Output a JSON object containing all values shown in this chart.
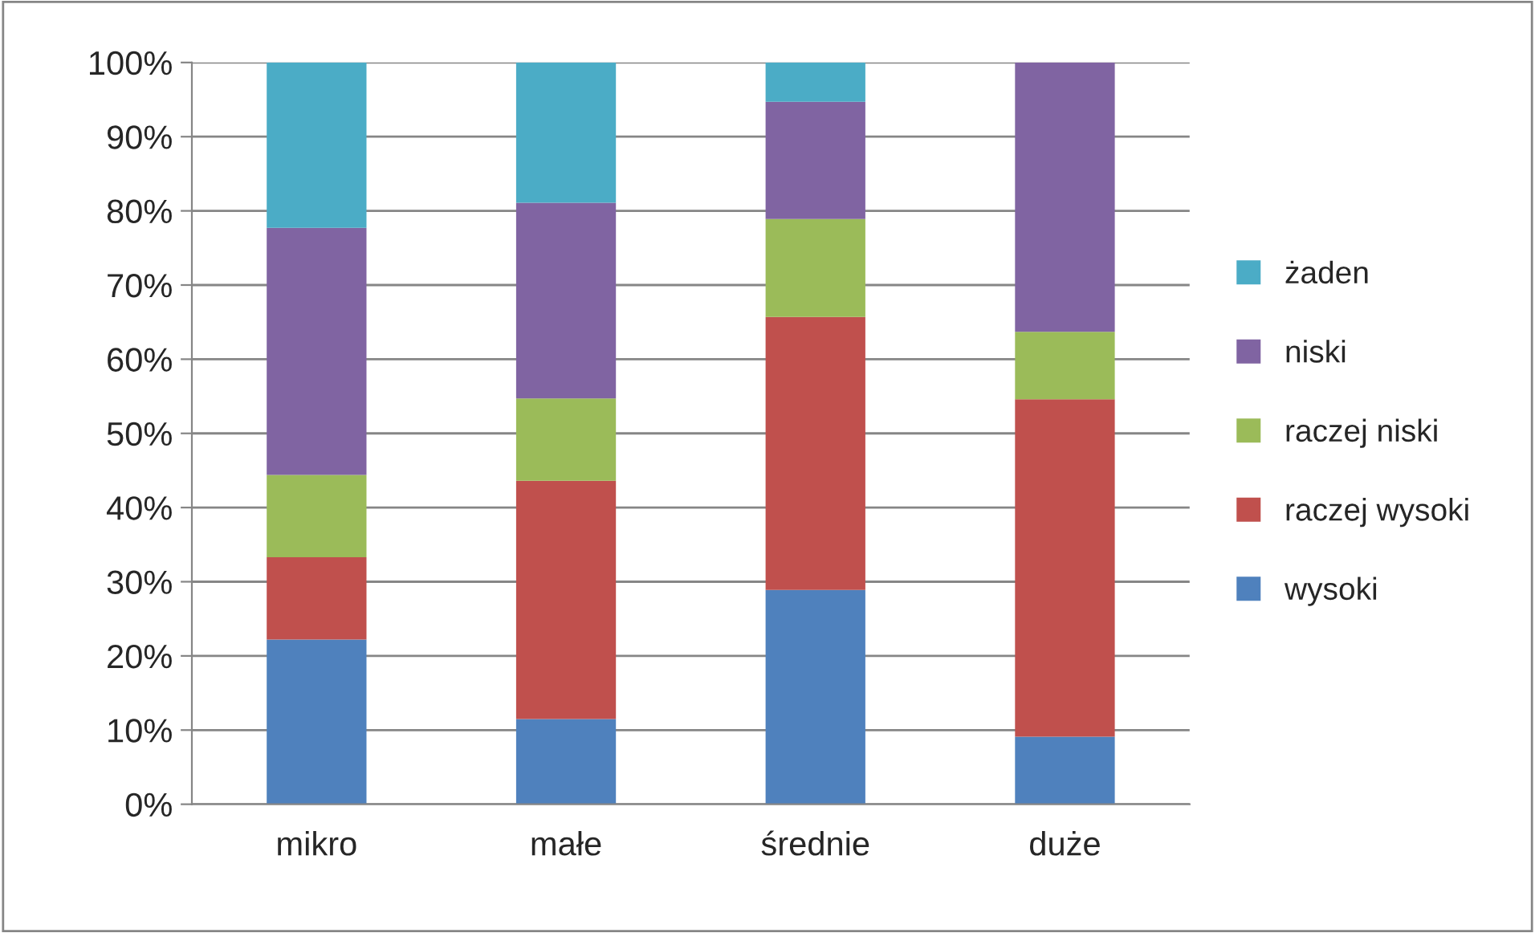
{
  "chart_data": {
    "type": "bar",
    "stacked": true,
    "categories": [
      "mikro",
      "małe",
      "średnie",
      "duże"
    ],
    "series": [
      {
        "name": "wysoki",
        "color": "#4f81bd",
        "values": [
          22.2,
          11.5,
          28.9,
          9.1
        ]
      },
      {
        "name": "raczej wysoki",
        "color": "#c0504d",
        "values": [
          11.1,
          32.1,
          36.8,
          45.5
        ]
      },
      {
        "name": "raczej niski",
        "color": "#9bbb59",
        "values": [
          11.1,
          11.1,
          13.2,
          9.1
        ]
      },
      {
        "name": "niski",
        "color": "#8064a2",
        "values": [
          33.3,
          26.4,
          15.8,
          36.3
        ]
      },
      {
        "name": "żaden",
        "color": "#4bacc6",
        "values": [
          22.3,
          18.9,
          5.3,
          0
        ]
      }
    ],
    "ylim": [
      0,
      100
    ],
    "yticks": [
      {
        "value": 0,
        "label": "0%"
      },
      {
        "value": 10,
        "label": "10%"
      },
      {
        "value": 20,
        "label": "20%"
      },
      {
        "value": 30,
        "label": "30%"
      },
      {
        "value": 40,
        "label": "40%"
      },
      {
        "value": 50,
        "label": "50%"
      },
      {
        "value": 60,
        "label": "60%"
      },
      {
        "value": 70,
        "label": "70%"
      },
      {
        "value": 80,
        "label": "80%"
      },
      {
        "value": 90,
        "label": "90%"
      },
      {
        "value": 100,
        "label": "100%"
      }
    ],
    "grid": "y",
    "legend": "right"
  }
}
